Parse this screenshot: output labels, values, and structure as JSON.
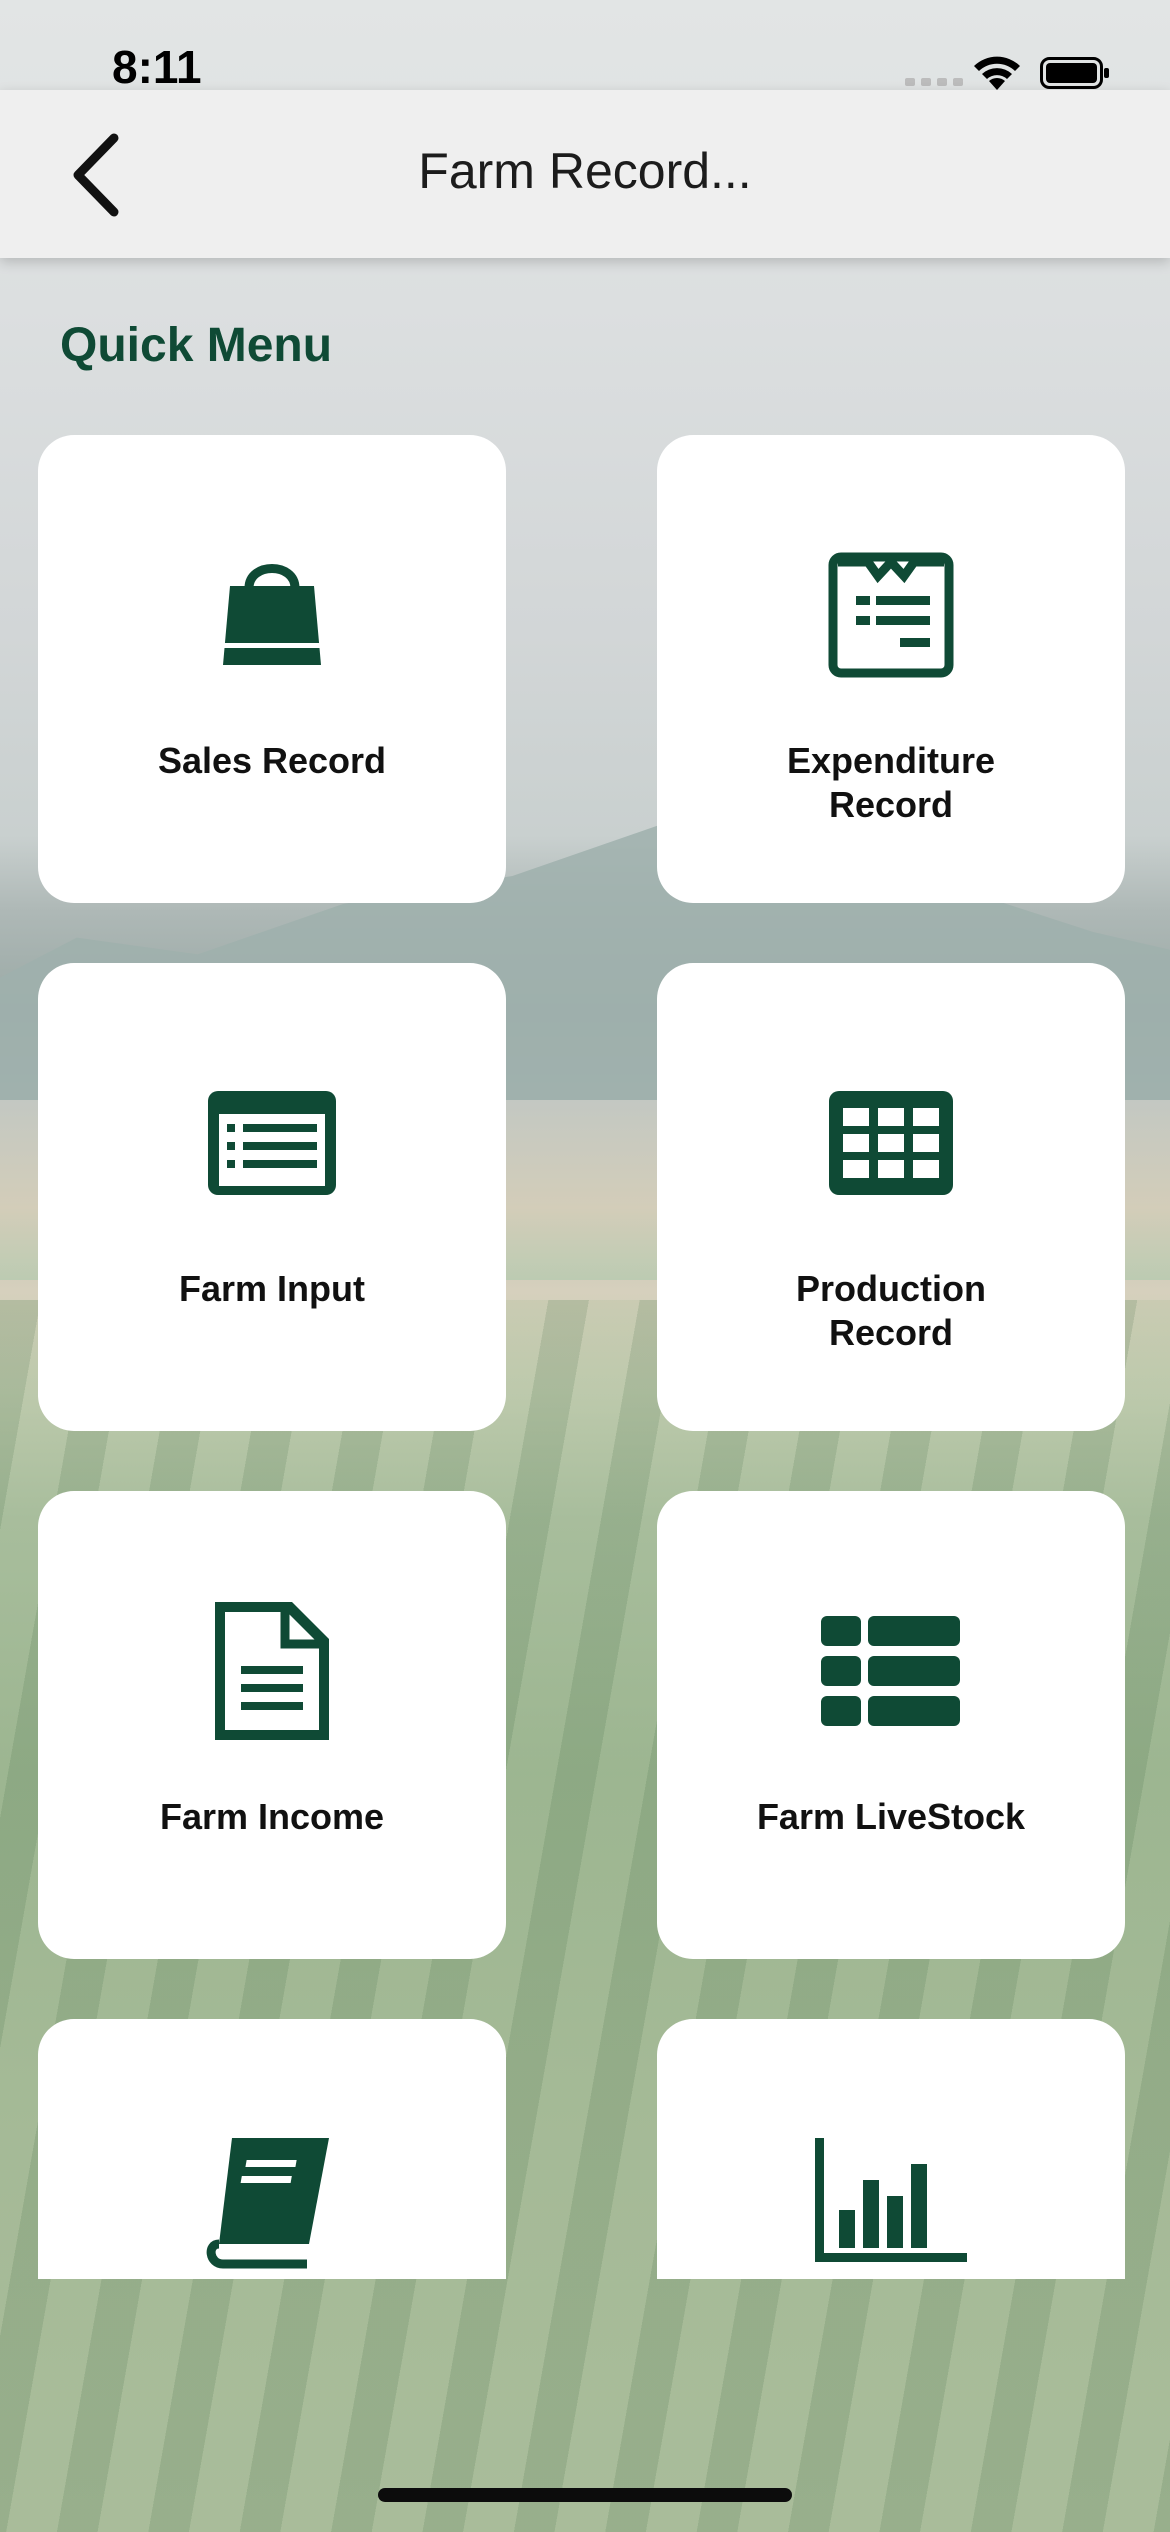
{
  "status_bar": {
    "time": "8:11"
  },
  "nav": {
    "title": "Farm Record..."
  },
  "section": {
    "title": "Quick Menu"
  },
  "colors": {
    "accent": "#0f4a35",
    "card_bg": "#ffffff"
  },
  "cards": [
    {
      "label": "Sales Record",
      "icon": "shopping-bag-icon"
    },
    {
      "label": "Expenditure Record",
      "icon": "invoice-icon"
    },
    {
      "label": "Farm Input",
      "icon": "list-card-icon"
    },
    {
      "label": "Production Record",
      "icon": "table-grid-icon"
    },
    {
      "label": "Farm Income",
      "icon": "document-icon"
    },
    {
      "label": "Farm LiveStock",
      "icon": "list-view-icon"
    },
    {
      "label": "",
      "icon": "book-icon"
    },
    {
      "label": "",
      "icon": "bar-chart-icon"
    }
  ]
}
